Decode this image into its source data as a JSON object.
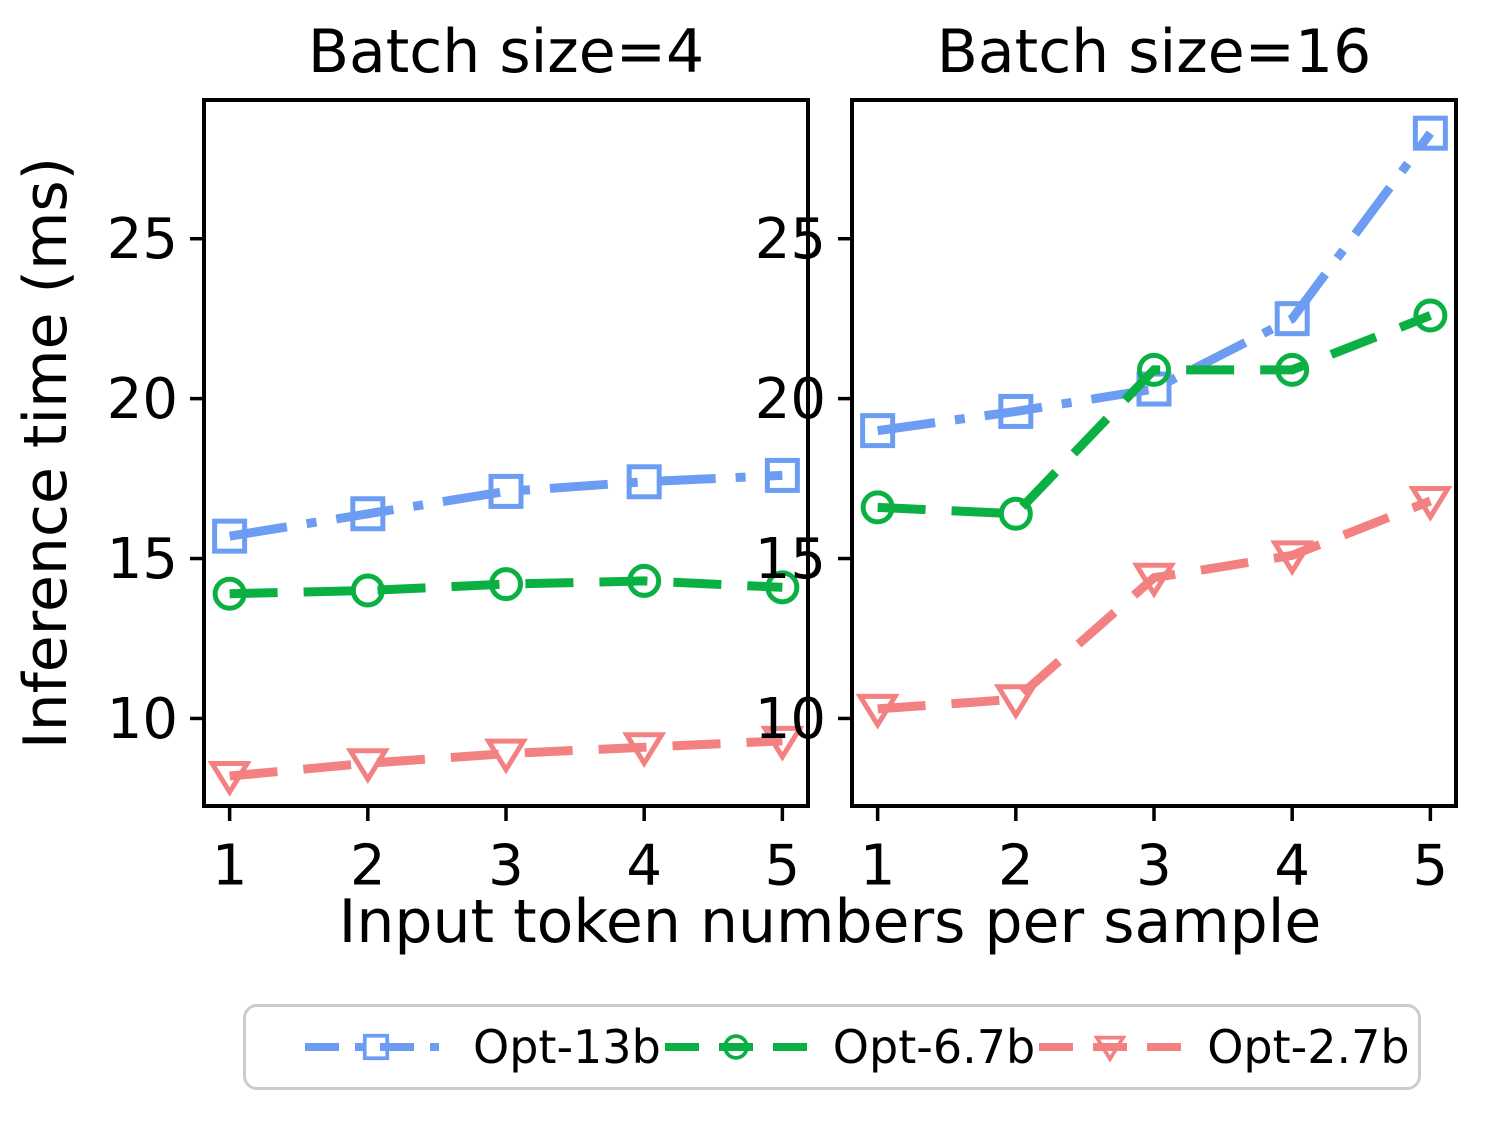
{
  "figure": {
    "background": "#ffffff",
    "axis_color": "#000000",
    "text_color": "#000000",
    "legend_border_color": "#cccccc"
  },
  "chart_data": {
    "type": "line",
    "xlabel": "Input token numbers per sample",
    "ylabel": "Inference time (ms)",
    "x": [
      1,
      2,
      3,
      4,
      5
    ],
    "xtick_labels": [
      "1",
      "2",
      "3",
      "4",
      "5"
    ],
    "yticks": [
      10,
      15,
      20,
      25
    ],
    "xlim": [
      0.8,
      5.2
    ],
    "ylim": [
      7.2,
      29.4
    ],
    "grid": false,
    "legend_position": "bottom-outside",
    "legend": [
      {
        "label": "Opt-13b",
        "color": "#6c9df2",
        "marker": "square",
        "linestyle": "dashdot"
      },
      {
        "label": "Opt-6.7b",
        "color": "#0bb043",
        "marker": "circle",
        "linestyle": "dashed"
      },
      {
        "label": "Opt-2.7b",
        "color": "#f38181",
        "marker": "triangle-down",
        "linestyle": "dashed"
      }
    ],
    "subplots": [
      {
        "title": "Batch size=4",
        "series": [
          {
            "name": "Opt-13b",
            "values": [
              15.7,
              16.4,
              17.1,
              17.4,
              17.6
            ]
          },
          {
            "name": "Opt-6.7b",
            "values": [
              13.9,
              14.0,
              14.2,
              14.3,
              14.1
            ]
          },
          {
            "name": "Opt-2.7b",
            "values": [
              8.2,
              8.6,
              8.9,
              9.1,
              9.3
            ]
          }
        ]
      },
      {
        "title": "Batch size=16",
        "series": [
          {
            "name": "Opt-13b",
            "values": [
              19.0,
              19.6,
              20.3,
              22.5,
              28.3
            ]
          },
          {
            "name": "Opt-6.7b",
            "values": [
              16.6,
              16.4,
              20.9,
              20.9,
              22.6
            ]
          },
          {
            "name": "Opt-2.7b",
            "values": [
              10.3,
              10.6,
              14.4,
              15.1,
              16.8
            ]
          }
        ]
      }
    ]
  }
}
